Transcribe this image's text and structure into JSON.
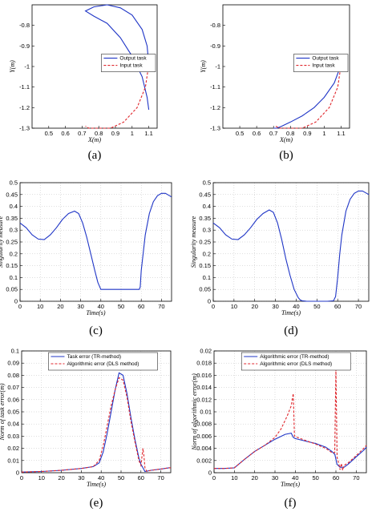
{
  "chart_data": [
    {
      "id": "a",
      "type": "line",
      "caption": "(a)",
      "xlabel": "X(m)",
      "ylabel": "Y(m)",
      "xlim": [
        0.4,
        1.15
      ],
      "ylim": [
        -1.3,
        -0.7
      ],
      "xticks": [
        0.5,
        0.6,
        0.7,
        0.8,
        0.9,
        1,
        1.1
      ],
      "yticks": [
        -1.3,
        -1.2,
        -1.1,
        -1,
        -0.9,
        -0.8
      ],
      "grid": false,
      "legend_position": "right",
      "series": [
        {
          "name": "Output task",
          "color": "#1f35c6",
          "dash": "solid",
          "x": [
            1.1,
            1.09,
            1.06,
            1.0,
            0.93,
            0.85,
            0.77,
            0.72,
            0.77,
            0.85,
            0.93,
            1.0,
            1.06,
            1.09,
            1.1
          ],
          "y": [
            -0.99,
            -0.9,
            -0.82,
            -0.75,
            -0.715,
            -0.7,
            -0.71,
            -0.73,
            -0.755,
            -0.79,
            -0.86,
            -0.95,
            -1.05,
            -1.15,
            -1.21
          ]
        },
        {
          "name": "Input task",
          "color": "#e0262c",
          "dash": "dashed",
          "x": [
            1.1,
            1.08,
            1.03,
            0.95,
            0.87,
            0.8,
            0.74,
            0.72
          ],
          "y": [
            -0.99,
            -1.1,
            -1.2,
            -1.27,
            -1.3,
            -1.3,
            -1.3,
            -1.29
          ]
        }
      ]
    },
    {
      "id": "b",
      "type": "line",
      "caption": "(b)",
      "xlabel": "X(m)",
      "ylabel": "Y(m)",
      "xlim": [
        0.4,
        1.15
      ],
      "ylim": [
        -1.3,
        -0.7
      ],
      "xticks": [
        0.5,
        0.6,
        0.7,
        0.8,
        0.9,
        1,
        1.1
      ],
      "yticks": [
        -1.3,
        -1.2,
        -1.1,
        -1,
        -0.9,
        -0.8
      ],
      "grid": false,
      "legend_position": "right",
      "series": [
        {
          "name": "Output task",
          "color": "#1f35c6",
          "dash": "solid",
          "x": [
            1.1,
            1.06,
            1.0,
            0.94,
            0.87,
            0.8,
            0.75,
            0.72,
            0.7
          ],
          "y": [
            -0.99,
            -1.08,
            -1.15,
            -1.2,
            -1.24,
            -1.27,
            -1.29,
            -1.3,
            -1.3
          ]
        },
        {
          "name": "Input task",
          "color": "#e0262c",
          "dash": "dashed",
          "x": [
            1.1,
            1.08,
            1.03,
            0.95,
            0.87,
            0.8,
            0.74,
            0.71
          ],
          "y": [
            -0.99,
            -1.1,
            -1.2,
            -1.27,
            -1.3,
            -1.3,
            -1.3,
            -1.29
          ]
        }
      ]
    },
    {
      "id": "c",
      "type": "line",
      "caption": "(c)",
      "xlabel": "Time(s)",
      "ylabel": "Singularity measure",
      "xlim": [
        0,
        75
      ],
      "ylim": [
        0,
        0.5
      ],
      "xticks": [
        0,
        10,
        20,
        30,
        40,
        50,
        60,
        70
      ],
      "yticks": [
        0,
        0.05,
        0.1,
        0.15,
        0.2,
        0.25,
        0.3,
        0.35,
        0.4,
        0.45,
        0.5
      ],
      "grid": true,
      "series": [
        {
          "name": "",
          "color": "#1f35c6",
          "dash": "solid",
          "x": [
            0,
            3,
            6,
            9,
            12,
            15,
            18,
            21,
            24,
            27,
            29,
            31,
            33,
            35,
            37,
            38.5,
            39.5,
            40,
            45,
            50,
            55,
            59,
            59.5,
            60,
            62,
            64,
            66,
            68,
            70,
            72,
            74,
            75
          ],
          "y": [
            0.33,
            0.31,
            0.28,
            0.262,
            0.26,
            0.28,
            0.31,
            0.345,
            0.37,
            0.38,
            0.37,
            0.33,
            0.27,
            0.2,
            0.13,
            0.08,
            0.06,
            0.05,
            0.05,
            0.05,
            0.05,
            0.05,
            0.06,
            0.13,
            0.28,
            0.37,
            0.42,
            0.445,
            0.455,
            0.455,
            0.445,
            0.44
          ]
        }
      ]
    },
    {
      "id": "d",
      "type": "line",
      "caption": "(d)",
      "xlabel": "Time(s)",
      "ylabel": "Singularity measure",
      "xlim": [
        0,
        75
      ],
      "ylim": [
        0,
        0.5
      ],
      "xticks": [
        0,
        10,
        20,
        30,
        40,
        50,
        60,
        70
      ],
      "yticks": [
        0,
        0.05,
        0.1,
        0.15,
        0.2,
        0.25,
        0.3,
        0.35,
        0.4,
        0.45,
        0.5
      ],
      "grid": true,
      "series": [
        {
          "name": "",
          "color": "#1f35c6",
          "dash": "solid",
          "x": [
            0,
            3,
            6,
            9,
            12,
            15,
            18,
            21,
            24,
            27,
            29,
            31,
            33,
            35,
            37,
            39,
            41,
            42,
            43,
            45,
            50,
            55,
            58,
            59,
            60,
            61,
            62,
            64,
            66,
            68,
            70,
            72,
            74,
            75
          ],
          "y": [
            0.33,
            0.31,
            0.28,
            0.262,
            0.26,
            0.28,
            0.31,
            0.345,
            0.37,
            0.385,
            0.375,
            0.33,
            0.26,
            0.18,
            0.11,
            0.05,
            0.015,
            0.005,
            0.002,
            0.0,
            0.0,
            0.0,
            0.002,
            0.02,
            0.1,
            0.2,
            0.28,
            0.38,
            0.43,
            0.455,
            0.465,
            0.465,
            0.455,
            0.45
          ]
        }
      ]
    },
    {
      "id": "e",
      "type": "line",
      "caption": "(e)",
      "xlabel": "Time(s)",
      "ylabel": "Norm of task error(m)",
      "xlim": [
        0,
        75
      ],
      "ylim": [
        0,
        0.1
      ],
      "xticks": [
        0,
        10,
        20,
        30,
        40,
        50,
        60,
        70
      ],
      "yticks": [
        0,
        0.01,
        0.02,
        0.03,
        0.04,
        0.05,
        0.06,
        0.07,
        0.08,
        0.09,
        0.1
      ],
      "grid": true,
      "legend_position": "top-left",
      "series": [
        {
          "name": "Task error (TR-method)",
          "color": "#1f35c6",
          "dash": "solid",
          "x": [
            0,
            10,
            20,
            30,
            36,
            39,
            41,
            43,
            45,
            47,
            49,
            51,
            53,
            55,
            57,
            59,
            60,
            61,
            62,
            65,
            70,
            74,
            75
          ],
          "y": [
            0.0005,
            0.001,
            0.002,
            0.0035,
            0.005,
            0.008,
            0.017,
            0.032,
            0.05,
            0.068,
            0.082,
            0.08,
            0.065,
            0.045,
            0.027,
            0.012,
            0.007,
            0.004,
            0.001,
            0.002,
            0.003,
            0.004,
            0.004
          ]
        },
        {
          "name": "Algorithmic error (DLS method)",
          "color": "#e0262c",
          "dash": "dashed",
          "x": [
            0,
            10,
            20,
            30,
            36,
            39,
            41,
            43,
            45,
            47,
            49,
            51,
            53,
            55,
            57,
            59,
            60,
            61,
            61.5,
            62,
            63,
            65,
            70,
            74,
            75
          ],
          "y": [
            0.0005,
            0.001,
            0.002,
            0.0035,
            0.005,
            0.01,
            0.022,
            0.038,
            0.055,
            0.068,
            0.078,
            0.076,
            0.062,
            0.042,
            0.025,
            0.01,
            0.006,
            0.02,
            0.014,
            0.004,
            0.001,
            0.002,
            0.003,
            0.004,
            0.004
          ]
        }
      ]
    },
    {
      "id": "f",
      "type": "line",
      "caption": "(f)",
      "xlabel": "Time(s)",
      "ylabel": "Norm of algorithmic error(m)",
      "xlim": [
        0,
        75
      ],
      "ylim": [
        0,
        0.02
      ],
      "xticks": [
        0,
        10,
        20,
        30,
        40,
        50,
        60,
        70
      ],
      "yticks": [
        0,
        0.002,
        0.004,
        0.006,
        0.008,
        0.01,
        0.012,
        0.014,
        0.016,
        0.018,
        0.02
      ],
      "grid": true,
      "legend_position": "top-left",
      "series": [
        {
          "name": "Algorithmic error (TR-method)",
          "color": "#1f35c6",
          "dash": "solid",
          "x": [
            0,
            5,
            10,
            15,
            20,
            25,
            30,
            35,
            38,
            39,
            40,
            45,
            50,
            55,
            58,
            59.5,
            60.5,
            62,
            64,
            66,
            70,
            74,
            75
          ],
          "y": [
            0.0007,
            0.0007,
            0.0008,
            0.0022,
            0.0035,
            0.0045,
            0.0055,
            0.0063,
            0.0065,
            0.0058,
            0.0056,
            0.0052,
            0.0048,
            0.0042,
            0.0035,
            0.003,
            0.0014,
            0.0009,
            0.0009,
            0.0014,
            0.0026,
            0.0038,
            0.0042
          ]
        },
        {
          "name": "Algorithmic error (DLS method)",
          "color": "#e0262c",
          "dash": "dashed",
          "x": [
            0,
            5,
            10,
            15,
            20,
            25,
            30,
            33,
            36,
            38,
            39,
            39.6,
            41,
            45,
            50,
            55,
            58,
            59.4,
            60,
            60.6,
            61.5,
            62,
            62.7,
            63.3,
            64,
            66,
            70,
            74,
            75
          ],
          "y": [
            0.0007,
            0.0007,
            0.0008,
            0.0022,
            0.0035,
            0.0045,
            0.0058,
            0.0072,
            0.0093,
            0.011,
            0.013,
            0.006,
            0.0058,
            0.0053,
            0.0047,
            0.004,
            0.0033,
            0.0033,
            0.017,
            0.0025,
            0.0014,
            0.0005,
            0.0015,
            0.0004,
            0.0012,
            0.0016,
            0.0028,
            0.0041,
            0.0045
          ]
        }
      ]
    }
  ]
}
